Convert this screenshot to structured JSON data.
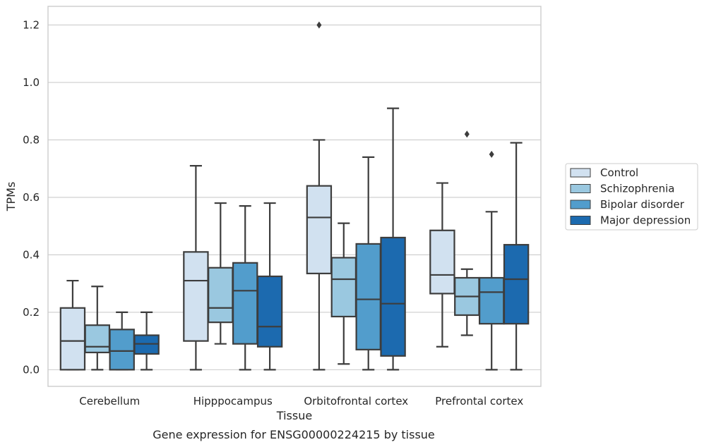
{
  "caption": "Gene expression for ENSG00000224215 by tissue",
  "chart_data": {
    "type": "boxplot",
    "xlabel": "Tissue",
    "ylabel": "TPMs",
    "ylim": [
      -0.058,
      1.265
    ],
    "yticks": [
      "0.0",
      "0.2",
      "0.4",
      "0.6",
      "0.8",
      "1.0",
      "1.2"
    ],
    "grid": true,
    "legend_position": "right",
    "categories": [
      "Cerebellum",
      "Hipppocampus",
      "Orbitofrontal cortex",
      "Prefrontal cortex"
    ],
    "series": [
      {
        "name": "Control",
        "color": "#d1e1f0",
        "boxes": [
          {
            "whislo": 0.0,
            "q1": 0.0,
            "med": 0.1,
            "q3": 0.215,
            "whishi": 0.31,
            "fliers": []
          },
          {
            "whislo": 0.0,
            "q1": 0.1,
            "med": 0.31,
            "q3": 0.41,
            "whishi": 0.71,
            "fliers": []
          },
          {
            "whislo": 0.0,
            "q1": 0.335,
            "med": 0.53,
            "q3": 0.64,
            "whishi": 0.8,
            "fliers": [
              1.2
            ]
          },
          {
            "whislo": 0.08,
            "q1": 0.265,
            "med": 0.33,
            "q3": 0.485,
            "whishi": 0.65,
            "fliers": []
          }
        ]
      },
      {
        "name": "Schizophrenia",
        "color": "#9ac8e0",
        "boxes": [
          {
            "whislo": 0.0,
            "q1": 0.06,
            "med": 0.08,
            "q3": 0.155,
            "whishi": 0.29,
            "fliers": []
          },
          {
            "whislo": 0.09,
            "q1": 0.165,
            "med": 0.215,
            "q3": 0.355,
            "whishi": 0.58,
            "fliers": []
          },
          {
            "whislo": 0.02,
            "q1": 0.185,
            "med": 0.315,
            "q3": 0.39,
            "whishi": 0.51,
            "fliers": []
          },
          {
            "whislo": 0.12,
            "q1": 0.19,
            "med": 0.255,
            "q3": 0.32,
            "whishi": 0.35,
            "fliers": [
              0.82
            ]
          }
        ]
      },
      {
        "name": "Bipolar disorder",
        "color": "#529dcc",
        "boxes": [
          {
            "whislo": 0.0,
            "q1": 0.0,
            "med": 0.065,
            "q3": 0.14,
            "whishi": 0.2,
            "fliers": []
          },
          {
            "whislo": 0.0,
            "q1": 0.09,
            "med": 0.275,
            "q3": 0.372,
            "whishi": 0.57,
            "fliers": []
          },
          {
            "whislo": 0.0,
            "q1": 0.07,
            "med": 0.245,
            "q3": 0.438,
            "whishi": 0.74,
            "fliers": []
          },
          {
            "whislo": 0.0,
            "q1": 0.16,
            "med": 0.27,
            "q3": 0.32,
            "whishi": 0.55,
            "fliers": [
              0.75
            ]
          }
        ]
      },
      {
        "name": "Major depression",
        "color": "#1c6aaf",
        "boxes": [
          {
            "whislo": 0.0,
            "q1": 0.055,
            "med": 0.09,
            "q3": 0.12,
            "whishi": 0.2,
            "fliers": []
          },
          {
            "whislo": 0.0,
            "q1": 0.08,
            "med": 0.15,
            "q3": 0.325,
            "whishi": 0.58,
            "fliers": []
          },
          {
            "whislo": 0.0,
            "q1": 0.048,
            "med": 0.23,
            "q3": 0.46,
            "whishi": 0.91,
            "fliers": []
          },
          {
            "whislo": 0.0,
            "q1": 0.16,
            "med": 0.315,
            "q3": 0.435,
            "whishi": 0.79,
            "fliers": []
          }
        ]
      }
    ]
  }
}
